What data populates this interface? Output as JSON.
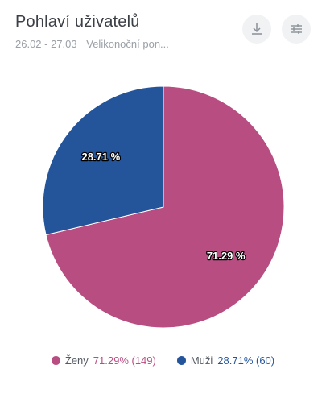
{
  "header": {
    "title": "Pohlaví uživatelů",
    "date_range": "26.02 - 27.03",
    "segment": "Velikonoční pon..."
  },
  "icons": {
    "download": "download-icon",
    "settings": "sliders-icon"
  },
  "chart_data": {
    "type": "pie",
    "title": "Pohlaví uživatelů",
    "series": [
      {
        "name": "Ženy",
        "value": 149,
        "percent": 71.29,
        "label": "71.29 %",
        "legend_value": "71.29% (149)",
        "color": "#b84d82"
      },
      {
        "name": "Muži",
        "value": 60,
        "percent": 28.71,
        "label": "28.71 %",
        "legend_value": "28.71% (60)",
        "color": "#24559b"
      }
    ],
    "legend_placement": "bottom"
  }
}
